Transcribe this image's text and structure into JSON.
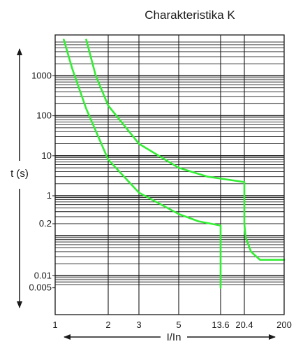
{
  "chart_data": {
    "type": "line",
    "title": "Charakteristika K",
    "xlabel": "I/In",
    "ylabel": "t (s)",
    "x_scale": "log",
    "y_scale": "log",
    "xlim": [
      1,
      200
    ],
    "ylim": [
      0.005,
      8000
    ],
    "x_ticks": [
      {
        "v": 1,
        "label": "1"
      },
      {
        "v": 2,
        "label": "2"
      },
      {
        "v": 3,
        "label": "3"
      },
      {
        "v": 5,
        "label": "5"
      },
      {
        "v": 13.6,
        "label": "13.6"
      },
      {
        "v": 20.4,
        "label": "20.4"
      },
      {
        "v": 200,
        "label": "200"
      }
    ],
    "y_ticks": [
      {
        "v": 1000,
        "label": "1000"
      },
      {
        "v": 100,
        "label": "100"
      },
      {
        "v": 10,
        "label": "10"
      },
      {
        "v": 1,
        "label": "1"
      },
      {
        "v": 0.2,
        "label": "0.2"
      },
      {
        "v": 0.01,
        "label": "0.01"
      },
      {
        "v": 0.005,
        "label": "0.005"
      }
    ],
    "grid": true,
    "series_color": "#33ee33",
    "series": [
      {
        "x": [
          1.12,
          1.25,
          1.5,
          2,
          3,
          5,
          8,
          13.6,
          13.6,
          13.6
        ],
        "y": [
          8000,
          1500,
          150,
          8,
          1.2,
          0.35,
          0.23,
          0.18,
          0.02,
          0.005
        ]
      },
      {
        "x": [
          1.5,
          1.7,
          2,
          3,
          5,
          10,
          20.4,
          20.4,
          22,
          30,
          50,
          200
        ],
        "y": [
          8000,
          1000,
          180,
          20,
          5,
          3,
          2.2,
          0.2,
          0.09,
          0.04,
          0.025,
          0.025
        ]
      }
    ]
  }
}
